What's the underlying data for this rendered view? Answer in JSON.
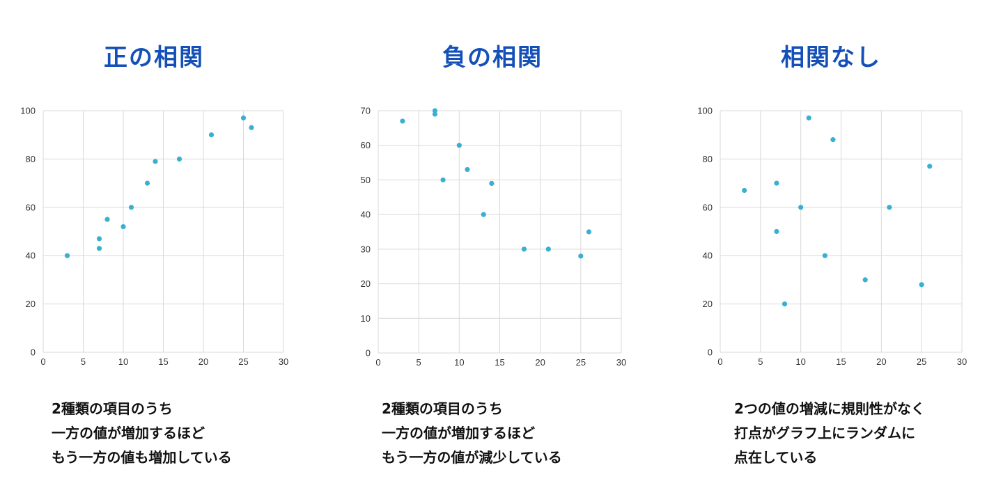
{
  "panels": [
    {
      "title": "正の相関",
      "description_lines": [
        "2種類の項目のうち",
        "一方の値が増加するほど",
        "もう一方の値も増加している"
      ]
    },
    {
      "title": "負の相関",
      "description_lines": [
        "2種類の項目のうち",
        "一方の値が増加するほど",
        "もう一方の値が減少している"
      ]
    },
    {
      "title": "相関なし",
      "description_lines": [
        "2つの値の増減に規則性がなく",
        "打点がグラフ上にランダムに",
        "点在している"
      ]
    }
  ],
  "colors": {
    "title": "#1550b8",
    "point": "#3ab0d0",
    "grid": "#d9d9d9",
    "text": "#111111"
  },
  "chart_data": [
    {
      "type": "scatter",
      "title": "",
      "xlabel": "",
      "ylabel": "",
      "xlim": [
        0,
        30
      ],
      "ylim": [
        0,
        100
      ],
      "x_ticks": [
        0,
        5,
        10,
        15,
        20,
        25,
        30
      ],
      "y_ticks": [
        0,
        20,
        40,
        60,
        80,
        100
      ],
      "grid": true,
      "points": [
        {
          "x": 3,
          "y": 40
        },
        {
          "x": 7,
          "y": 43
        },
        {
          "x": 7,
          "y": 47
        },
        {
          "x": 8,
          "y": 55
        },
        {
          "x": 10,
          "y": 52
        },
        {
          "x": 11,
          "y": 60
        },
        {
          "x": 13,
          "y": 70
        },
        {
          "x": 14,
          "y": 79
        },
        {
          "x": 17,
          "y": 80
        },
        {
          "x": 21,
          "y": 90
        },
        {
          "x": 25,
          "y": 97
        },
        {
          "x": 26,
          "y": 93
        }
      ]
    },
    {
      "type": "scatter",
      "title": "",
      "xlabel": "",
      "ylabel": "",
      "xlim": [
        0,
        30
      ],
      "ylim": [
        0,
        70
      ],
      "x_ticks": [
        0,
        5,
        10,
        15,
        20,
        25,
        30
      ],
      "y_ticks": [
        0,
        10,
        20,
        30,
        40,
        50,
        60,
        70
      ],
      "grid": true,
      "points": [
        {
          "x": 3,
          "y": 67
        },
        {
          "x": 7,
          "y": 70
        },
        {
          "x": 7,
          "y": 69
        },
        {
          "x": 8,
          "y": 50
        },
        {
          "x": 10,
          "y": 60
        },
        {
          "x": 11,
          "y": 53
        },
        {
          "x": 13,
          "y": 40
        },
        {
          "x": 14,
          "y": 49
        },
        {
          "x": 18,
          "y": 30
        },
        {
          "x": 21,
          "y": 30
        },
        {
          "x": 25,
          "y": 28
        },
        {
          "x": 26,
          "y": 35
        }
      ]
    },
    {
      "type": "scatter",
      "title": "",
      "xlabel": "",
      "ylabel": "",
      "xlim": [
        0,
        30
      ],
      "ylim": [
        0,
        100
      ],
      "x_ticks": [
        0,
        5,
        10,
        15,
        20,
        25,
        30
      ],
      "y_ticks": [
        0,
        20,
        40,
        60,
        80,
        100
      ],
      "grid": true,
      "points": [
        {
          "x": 3,
          "y": 67
        },
        {
          "x": 7,
          "y": 70
        },
        {
          "x": 7,
          "y": 50
        },
        {
          "x": 8,
          "y": 20
        },
        {
          "x": 10,
          "y": 60
        },
        {
          "x": 11,
          "y": 97
        },
        {
          "x": 13,
          "y": 40
        },
        {
          "x": 14,
          "y": 88
        },
        {
          "x": 18,
          "y": 30
        },
        {
          "x": 21,
          "y": 60
        },
        {
          "x": 25,
          "y": 28
        },
        {
          "x": 26,
          "y": 77
        }
      ]
    }
  ]
}
